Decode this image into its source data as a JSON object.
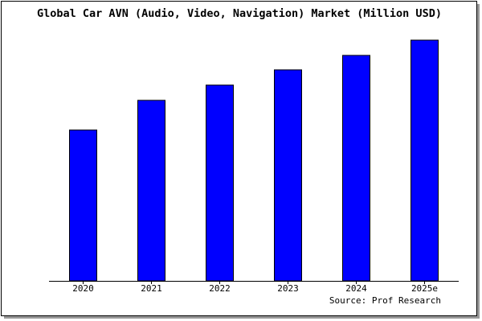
{
  "chart_data": {
    "type": "bar",
    "title": "Global Car AVN (Audio, Video, Navigation) Market (Million USD)",
    "source": "Source: Prof Research",
    "categories": [
      "2020",
      "2021",
      "2022",
      "2023",
      "2024",
      "2025e"
    ],
    "values": [
      188,
      225,
      244,
      263,
      281,
      300
    ],
    "color": "#0000ff",
    "ylim": [
      0,
      310
    ]
  }
}
